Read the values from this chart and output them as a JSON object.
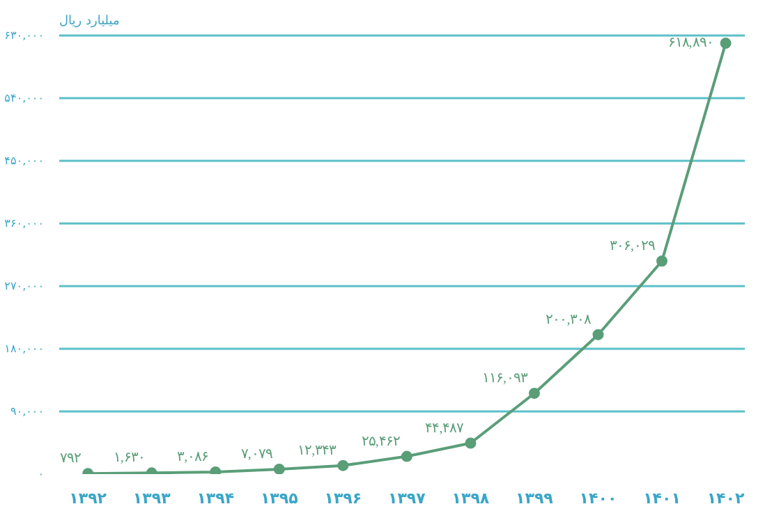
{
  "chart_data": {
    "type": "line",
    "ylabel": "میلیارد ریال",
    "categories": [
      "۱۳۹۲",
      "۱۳۹۳",
      "۱۳۹۴",
      "۱۳۹۵",
      "۱۳۹۶",
      "۱۳۹۷",
      "۱۳۹۸",
      "۱۳۹۹",
      "۱۴۰۰",
      "۱۴۰۱",
      "۱۴۰۲"
    ],
    "series": [
      {
        "color": "#5a9e78",
        "values": [
          792,
          1630,
          3086,
          7079,
          12343,
          25462,
          44487,
          116093,
          200308,
          306029,
          618890
        ],
        "value_labels": [
          "۷۹۲",
          "۱,۶۳۰",
          "۳,۰۸۶",
          "۷,۰۷۹",
          "۱۲,۳۴۳",
          "۲۵,۴۶۲",
          "۴۴,۴۸۷",
          "۱۱۶,۰۹۳",
          "۲۰۰,۳۰۸",
          "۳۰۶,۰۲۹",
          "۶۱۸,۸۹۰"
        ]
      }
    ],
    "ylim": [
      0,
      630000
    ],
    "yticks": [
      {
        "value": 0,
        "label": "۰"
      },
      {
        "value": 90000,
        "label": "۹۰,۰۰۰"
      },
      {
        "value": 180000,
        "label": "۱۸۰,۰۰۰"
      },
      {
        "value": 270000,
        "label": "۲۷۰,۰۰۰"
      },
      {
        "value": 360000,
        "label": "۳۶۰,۰۰۰"
      },
      {
        "value": 450000,
        "label": "۴۵۰,۰۰۰"
      },
      {
        "value": 540000,
        "label": "۵۴۰,۰۰۰"
      },
      {
        "value": 630000,
        "label": "۶۳۰,۰۰۰"
      }
    ],
    "grid": "y",
    "marker": "circle",
    "line_style": "solid"
  }
}
